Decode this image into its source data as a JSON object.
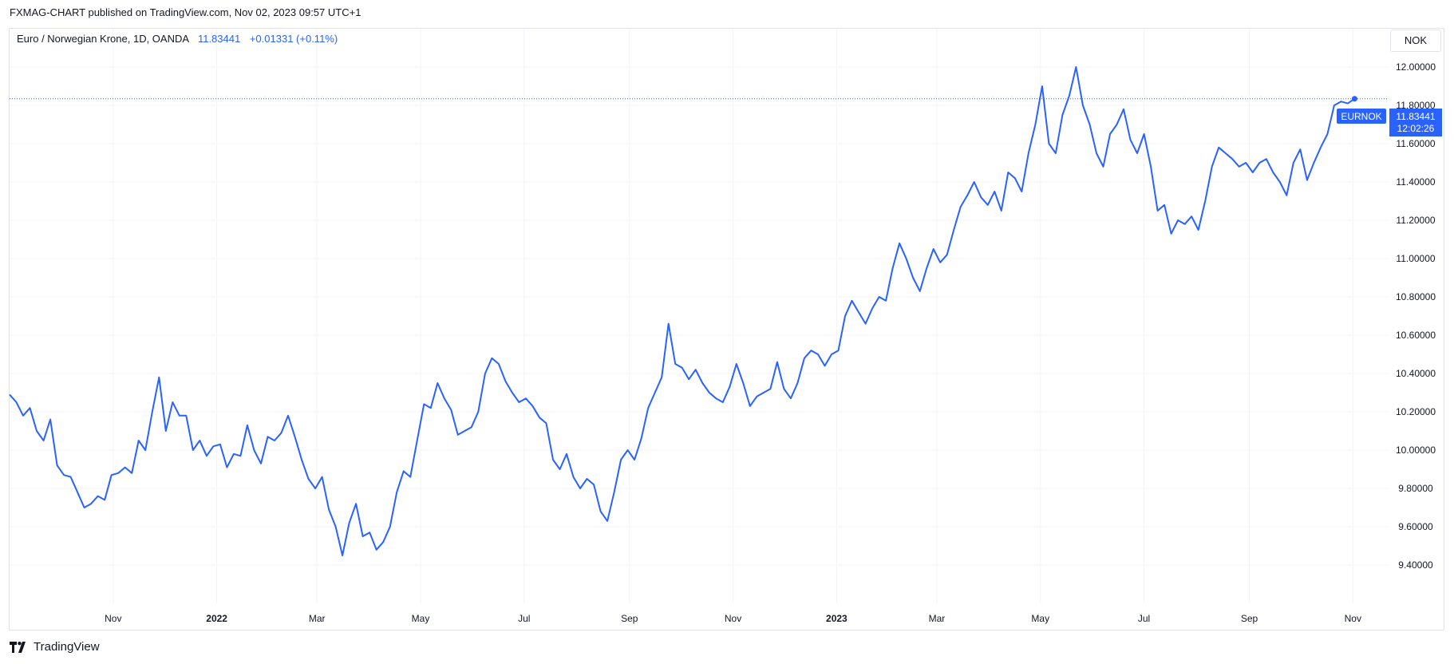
{
  "header": {
    "published": "FXMAG-CHART published on TradingView.com, Nov 02, 2023 09:57 UTC+1"
  },
  "legend": {
    "symbol": "Euro / Norwegian Krone, 1D, OANDA",
    "price": "11.83441",
    "change": "+0.01331 (+0.11%)"
  },
  "currency_button": "NOK",
  "price_label": {
    "ticker": "EURNOK",
    "price": "11.83441",
    "countdown": "12:02:26"
  },
  "footer": {
    "brand": "TradingView"
  },
  "colors": {
    "line": "#2962ff",
    "grid": "#f0f3fa",
    "text": "#131722",
    "accent": "#2962ff"
  },
  "chart_data": {
    "type": "line",
    "x_ticks": [
      {
        "label": "Nov",
        "date": "2021-11-01",
        "bold": false
      },
      {
        "label": "2022",
        "date": "2022-01-01",
        "bold": true
      },
      {
        "label": "Mar",
        "date": "2022-03-01",
        "bold": false
      },
      {
        "label": "May",
        "date": "2022-05-01",
        "bold": false
      },
      {
        "label": "Jul",
        "date": "2022-07-01",
        "bold": false
      },
      {
        "label": "Sep",
        "date": "2022-09-01",
        "bold": false
      },
      {
        "label": "Nov",
        "date": "2022-11-01",
        "bold": false
      },
      {
        "label": "2023",
        "date": "2023-01-01",
        "bold": true
      },
      {
        "label": "Mar",
        "date": "2023-03-01",
        "bold": false
      },
      {
        "label": "May",
        "date": "2023-05-01",
        "bold": false
      },
      {
        "label": "Jul",
        "date": "2023-07-01",
        "bold": false
      },
      {
        "label": "Sep",
        "date": "2023-09-01",
        "bold": false
      },
      {
        "label": "Nov",
        "date": "2023-11-01",
        "bold": false
      }
    ],
    "y_ticks": [
      "12.00000",
      "11.80000",
      "11.60000",
      "11.40000",
      "11.20000",
      "11.00000",
      "10.80000",
      "10.60000",
      "10.40000",
      "10.20000",
      "10.00000",
      "9.80000",
      "9.60000",
      "9.40000"
    ],
    "ylim": [
      9.2,
      12.2
    ],
    "xlim": [
      "2021-09-01",
      "2023-11-22"
    ],
    "grid": true,
    "series": [
      {
        "data": [
          [
            "2021-09-01",
            10.29
          ],
          [
            "2021-09-05",
            10.25
          ],
          [
            "2021-09-09",
            10.18
          ],
          [
            "2021-09-13",
            10.22
          ],
          [
            "2021-09-17",
            10.1
          ],
          [
            "2021-09-21",
            10.05
          ],
          [
            "2021-09-25",
            10.16
          ],
          [
            "2021-09-29",
            9.92
          ],
          [
            "2021-10-03",
            9.87
          ],
          [
            "2021-10-07",
            9.86
          ],
          [
            "2021-10-11",
            9.78
          ],
          [
            "2021-10-15",
            9.7
          ],
          [
            "2021-10-19",
            9.72
          ],
          [
            "2021-10-23",
            9.76
          ],
          [
            "2021-10-27",
            9.74
          ],
          [
            "2021-10-31",
            9.87
          ],
          [
            "2021-11-04",
            9.88
          ],
          [
            "2021-11-08",
            9.91
          ],
          [
            "2021-11-12",
            9.88
          ],
          [
            "2021-11-16",
            10.05
          ],
          [
            "2021-11-20",
            10.0
          ],
          [
            "2021-11-24",
            10.2
          ],
          [
            "2021-11-28",
            10.38
          ],
          [
            "2021-12-02",
            10.1
          ],
          [
            "2021-12-06",
            10.25
          ],
          [
            "2021-12-10",
            10.18
          ],
          [
            "2021-12-14",
            10.18
          ],
          [
            "2021-12-18",
            10.0
          ],
          [
            "2021-12-22",
            10.05
          ],
          [
            "2021-12-26",
            9.97
          ],
          [
            "2021-12-30",
            10.02
          ],
          [
            "2022-01-03",
            10.03
          ],
          [
            "2022-01-07",
            9.91
          ],
          [
            "2022-01-11",
            9.98
          ],
          [
            "2022-01-15",
            9.97
          ],
          [
            "2022-01-19",
            10.13
          ],
          [
            "2022-01-23",
            10.0
          ],
          [
            "2022-01-27",
            9.93
          ],
          [
            "2022-01-31",
            10.07
          ],
          [
            "2022-02-04",
            10.05
          ],
          [
            "2022-02-08",
            10.09
          ],
          [
            "2022-02-12",
            10.18
          ],
          [
            "2022-02-16",
            10.07
          ],
          [
            "2022-02-20",
            9.95
          ],
          [
            "2022-02-24",
            9.85
          ],
          [
            "2022-02-28",
            9.8
          ],
          [
            "2022-03-04",
            9.86
          ],
          [
            "2022-03-08",
            9.69
          ],
          [
            "2022-03-12",
            9.6
          ],
          [
            "2022-03-16",
            9.45
          ],
          [
            "2022-03-20",
            9.62
          ],
          [
            "2022-03-24",
            9.72
          ],
          [
            "2022-03-28",
            9.55
          ],
          [
            "2022-04-01",
            9.57
          ],
          [
            "2022-04-05",
            9.48
          ],
          [
            "2022-04-09",
            9.52
          ],
          [
            "2022-04-13",
            9.6
          ],
          [
            "2022-04-17",
            9.78
          ],
          [
            "2022-04-21",
            9.89
          ],
          [
            "2022-04-25",
            9.86
          ],
          [
            "2022-04-29",
            10.05
          ],
          [
            "2022-05-03",
            10.24
          ],
          [
            "2022-05-07",
            10.22
          ],
          [
            "2022-05-11",
            10.35
          ],
          [
            "2022-05-15",
            10.27
          ],
          [
            "2022-05-19",
            10.21
          ],
          [
            "2022-05-23",
            10.08
          ],
          [
            "2022-05-27",
            10.1
          ],
          [
            "2022-05-31",
            10.12
          ],
          [
            "2022-06-04",
            10.2
          ],
          [
            "2022-06-08",
            10.4
          ],
          [
            "2022-06-12",
            10.48
          ],
          [
            "2022-06-16",
            10.45
          ],
          [
            "2022-06-20",
            10.36
          ],
          [
            "2022-06-24",
            10.3
          ],
          [
            "2022-06-28",
            10.25
          ],
          [
            "2022-07-02",
            10.27
          ],
          [
            "2022-07-06",
            10.23
          ],
          [
            "2022-07-10",
            10.17
          ],
          [
            "2022-07-14",
            10.14
          ],
          [
            "2022-07-18",
            9.95
          ],
          [
            "2022-07-22",
            9.9
          ],
          [
            "2022-07-26",
            9.98
          ],
          [
            "2022-07-30",
            9.86
          ],
          [
            "2022-08-03",
            9.8
          ],
          [
            "2022-08-07",
            9.85
          ],
          [
            "2022-08-11",
            9.82
          ],
          [
            "2022-08-15",
            9.68
          ],
          [
            "2022-08-19",
            9.63
          ],
          [
            "2022-08-23",
            9.78
          ],
          [
            "2022-08-27",
            9.95
          ],
          [
            "2022-08-31",
            10.0
          ],
          [
            "2022-09-04",
            9.95
          ],
          [
            "2022-09-08",
            10.06
          ],
          [
            "2022-09-12",
            10.22
          ],
          [
            "2022-09-16",
            10.3
          ],
          [
            "2022-09-20",
            10.38
          ],
          [
            "2022-09-24",
            10.66
          ],
          [
            "2022-09-28",
            10.45
          ],
          [
            "2022-10-02",
            10.43
          ],
          [
            "2022-10-06",
            10.37
          ],
          [
            "2022-10-10",
            10.42
          ],
          [
            "2022-10-14",
            10.35
          ],
          [
            "2022-10-18",
            10.3
          ],
          [
            "2022-10-22",
            10.27
          ],
          [
            "2022-10-26",
            10.25
          ],
          [
            "2022-10-30",
            10.33
          ],
          [
            "2022-11-03",
            10.45
          ],
          [
            "2022-11-07",
            10.35
          ],
          [
            "2022-11-11",
            10.23
          ],
          [
            "2022-11-15",
            10.28
          ],
          [
            "2022-11-19",
            10.3
          ],
          [
            "2022-11-23",
            10.32
          ],
          [
            "2022-11-27",
            10.46
          ],
          [
            "2022-12-01",
            10.32
          ],
          [
            "2022-12-05",
            10.27
          ],
          [
            "2022-12-09",
            10.35
          ],
          [
            "2022-12-13",
            10.48
          ],
          [
            "2022-12-17",
            10.52
          ],
          [
            "2022-12-21",
            10.5
          ],
          [
            "2022-12-25",
            10.44
          ],
          [
            "2022-12-29",
            10.5
          ],
          [
            "2023-01-02",
            10.52
          ],
          [
            "2023-01-06",
            10.7
          ],
          [
            "2023-01-10",
            10.78
          ],
          [
            "2023-01-14",
            10.72
          ],
          [
            "2023-01-18",
            10.66
          ],
          [
            "2023-01-22",
            10.74
          ],
          [
            "2023-01-26",
            10.8
          ],
          [
            "2023-01-30",
            10.78
          ],
          [
            "2023-02-03",
            10.95
          ],
          [
            "2023-02-07",
            11.08
          ],
          [
            "2023-02-11",
            11.0
          ],
          [
            "2023-02-15",
            10.9
          ],
          [
            "2023-02-19",
            10.83
          ],
          [
            "2023-02-23",
            10.95
          ],
          [
            "2023-02-27",
            11.05
          ],
          [
            "2023-03-03",
            10.98
          ],
          [
            "2023-03-07",
            11.02
          ],
          [
            "2023-03-11",
            11.15
          ],
          [
            "2023-03-15",
            11.27
          ],
          [
            "2023-03-19",
            11.33
          ],
          [
            "2023-03-23",
            11.4
          ],
          [
            "2023-03-27",
            11.32
          ],
          [
            "2023-03-31",
            11.28
          ],
          [
            "2023-04-04",
            11.35
          ],
          [
            "2023-04-08",
            11.25
          ],
          [
            "2023-04-12",
            11.45
          ],
          [
            "2023-04-16",
            11.42
          ],
          [
            "2023-04-20",
            11.35
          ],
          [
            "2023-04-24",
            11.55
          ],
          [
            "2023-04-28",
            11.7
          ],
          [
            "2023-05-02",
            11.9
          ],
          [
            "2023-05-06",
            11.6
          ],
          [
            "2023-05-10",
            11.55
          ],
          [
            "2023-05-14",
            11.75
          ],
          [
            "2023-05-18",
            11.85
          ],
          [
            "2023-05-22",
            12.0
          ],
          [
            "2023-05-26",
            11.8
          ],
          [
            "2023-05-30",
            11.7
          ],
          [
            "2023-06-03",
            11.55
          ],
          [
            "2023-06-07",
            11.48
          ],
          [
            "2023-06-11",
            11.65
          ],
          [
            "2023-06-15",
            11.7
          ],
          [
            "2023-06-19",
            11.78
          ],
          [
            "2023-06-23",
            11.62
          ],
          [
            "2023-06-27",
            11.55
          ],
          [
            "2023-07-01",
            11.65
          ],
          [
            "2023-07-05",
            11.48
          ],
          [
            "2023-07-09",
            11.25
          ],
          [
            "2023-07-13",
            11.28
          ],
          [
            "2023-07-17",
            11.13
          ],
          [
            "2023-07-21",
            11.2
          ],
          [
            "2023-07-25",
            11.18
          ],
          [
            "2023-07-29",
            11.22
          ],
          [
            "2023-08-02",
            11.15
          ],
          [
            "2023-08-06",
            11.3
          ],
          [
            "2023-08-10",
            11.48
          ],
          [
            "2023-08-14",
            11.58
          ],
          [
            "2023-08-18",
            11.55
          ],
          [
            "2023-08-22",
            11.52
          ],
          [
            "2023-08-26",
            11.48
          ],
          [
            "2023-08-30",
            11.5
          ],
          [
            "2023-09-03",
            11.45
          ],
          [
            "2023-09-07",
            11.5
          ],
          [
            "2023-09-11",
            11.52
          ],
          [
            "2023-09-15",
            11.45
          ],
          [
            "2023-09-19",
            11.4
          ],
          [
            "2023-09-23",
            11.33
          ],
          [
            "2023-09-27",
            11.5
          ],
          [
            "2023-10-01",
            11.57
          ],
          [
            "2023-10-05",
            11.41
          ],
          [
            "2023-10-09",
            11.5
          ],
          [
            "2023-10-13",
            11.58
          ],
          [
            "2023-10-17",
            11.65
          ],
          [
            "2023-10-21",
            11.8
          ],
          [
            "2023-10-25",
            11.82
          ],
          [
            "2023-10-29",
            11.81
          ],
          [
            "2023-11-02",
            11.83441
          ]
        ]
      }
    ]
  }
}
